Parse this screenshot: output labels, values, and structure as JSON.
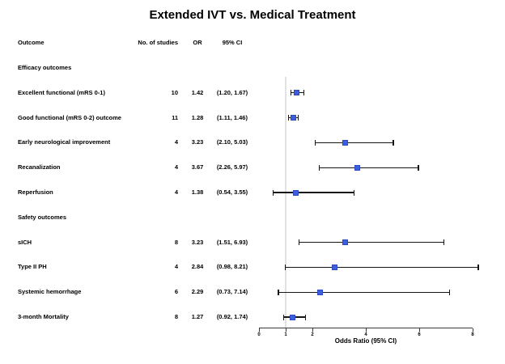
{
  "title": "Extended IVT vs. Medical Treatment",
  "table": {
    "headers": {
      "outcome": "Outcome",
      "n_studies": "No. of studies",
      "or": "OR",
      "ci": "95% CI"
    }
  },
  "chart_data": {
    "type": "forest",
    "title": "Extended IVT vs. Medical Treatment",
    "xlabel": "Odds Ratio (95% CI)",
    "xlim": [
      0,
      8
    ],
    "xticks": [
      0,
      1,
      2,
      4,
      6,
      8
    ],
    "reference_line_x": 1,
    "marker_color": "#3e5fdd",
    "marker_border_color": "#2c48c4",
    "ci_color": "#161616",
    "reference_line_color": "#e2e2e2",
    "rows": [
      {
        "kind": "section",
        "label": "Efficacy outcomes"
      },
      {
        "kind": "data",
        "label": "Excellent functional (mRS 0-1)",
        "n_studies": "10",
        "or": 1.42,
        "ci_lo": 1.2,
        "ci_hi": 1.67,
        "ci_text": "(1.20, 1.67)"
      },
      {
        "kind": "data",
        "label": "Good functional (mRS 0-2) outcome",
        "n_studies": "11",
        "or": 1.28,
        "ci_lo": 1.11,
        "ci_hi": 1.46,
        "ci_text": "(1.11, 1.46)"
      },
      {
        "kind": "data",
        "label": "Early neurological improvement",
        "n_studies": "4",
        "or": 3.23,
        "ci_lo": 2.1,
        "ci_hi": 5.03,
        "ci_text": "(2.10, 5.03)"
      },
      {
        "kind": "data",
        "label": "Recanalization",
        "n_studies": "4",
        "or": 3.67,
        "ci_lo": 2.26,
        "ci_hi": 5.97,
        "ci_text": "(2.26, 5.97)"
      },
      {
        "kind": "data",
        "label": "Reperfusion",
        "n_studies": "4",
        "or": 1.38,
        "ci_lo": 0.54,
        "ci_hi": 3.55,
        "ci_text": "(0.54, 3.55)"
      },
      {
        "kind": "section",
        "label": "Safety outcomes"
      },
      {
        "kind": "data",
        "label": "sICH",
        "n_studies": "8",
        "or": 3.23,
        "ci_lo": 1.51,
        "ci_hi": 6.93,
        "ci_text": "(1.51, 6.93)"
      },
      {
        "kind": "data",
        "label": "Type II PH",
        "n_studies": "4",
        "or": 2.84,
        "ci_lo": 0.98,
        "ci_hi": 8.21,
        "ci_text": "(0.98, 8.21)"
      },
      {
        "kind": "data",
        "label": "Systemic hemorrhage",
        "n_studies": "6",
        "or": 2.29,
        "ci_lo": 0.73,
        "ci_hi": 7.14,
        "ci_text": "(0.73, 7.14)"
      },
      {
        "kind": "data",
        "label": "3-month Mortality",
        "n_studies": "8",
        "or": 1.27,
        "ci_lo": 0.92,
        "ci_hi": 1.74,
        "ci_text": "(0.92, 1.74)"
      }
    ]
  }
}
